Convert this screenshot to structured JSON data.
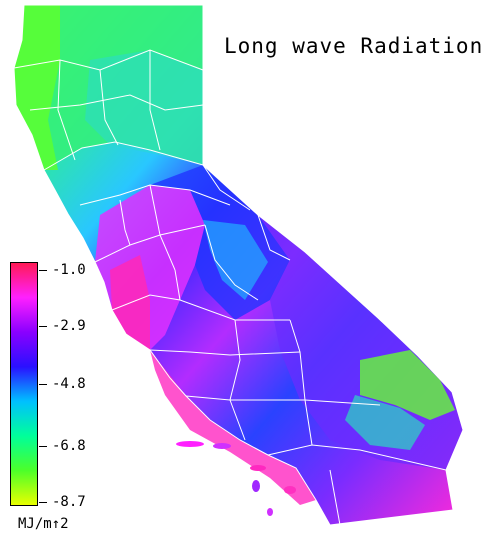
{
  "title": "Long wave Radiation",
  "legend": {
    "units": "MJ/m↑2",
    "ticks": [
      "-1.0",
      "-2.9",
      "-4.8",
      "-6.8",
      "-8.7"
    ],
    "colors": [
      "#ff1a55",
      "#ff20ff",
      "#8a00ff",
      "#2a10ff",
      "#00c0ff",
      "#00ff9a",
      "#4cff2a",
      "#e8ff00"
    ]
  },
  "map_colors": {
    "north": "#3cf06a",
    "north_coast": "#66ff33",
    "central_valley": "#e632ff",
    "sierra": "#2d3cff",
    "desert": "#8a2cff",
    "coast": "#ff2ad8",
    "border_lines": "#ffffff"
  }
}
